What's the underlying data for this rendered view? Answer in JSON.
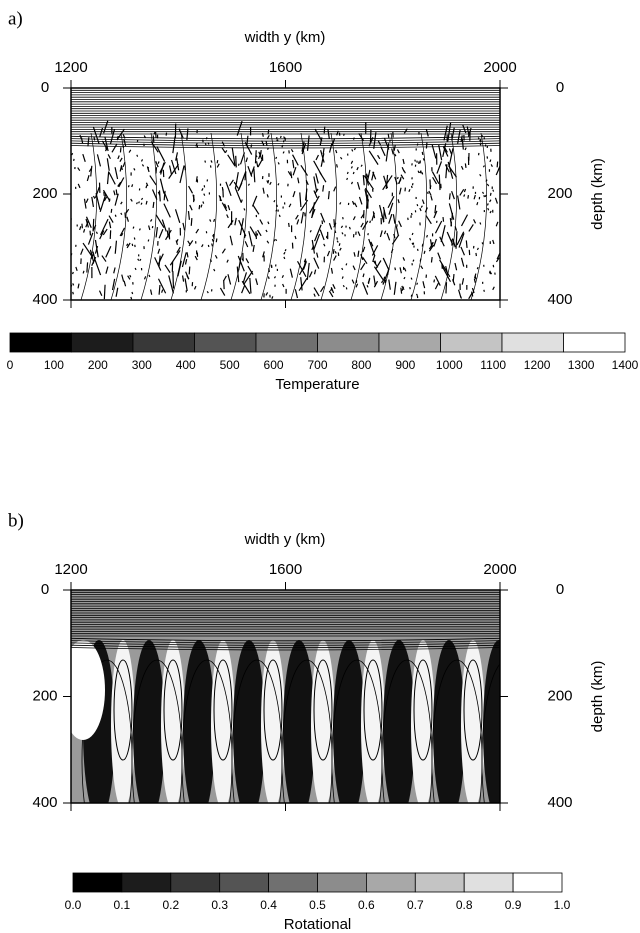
{
  "chart_data": [
    {
      "type": "contour",
      "panel_label": "a)",
      "xlabel": "width y (km)",
      "ylabel": "depth (km)",
      "xlim": [
        1200,
        2000
      ],
      "xticks": [
        1200,
        1600,
        2000
      ],
      "ylim": [
        0,
        400
      ],
      "yticks": [
        0,
        200,
        400
      ],
      "field": "vectors",
      "colorbar": {
        "label": "Temperature",
        "lim": [
          0,
          1400
        ],
        "ticks": [
          0,
          100,
          200,
          300,
          400,
          500,
          600,
          700,
          800,
          900,
          1000,
          1100,
          1200,
          1300,
          1400
        ],
        "colors": [
          "#000000",
          "#1c1c1c",
          "#383838",
          "#545454",
          "#707070",
          "#8c8c8c",
          "#a8a8a8",
          "#c4c4c4",
          "#e0e0e0",
          "#ffffff"
        ]
      }
    },
    {
      "type": "contour",
      "panel_label": "b)",
      "xlabel": "width y (km)",
      "ylabel": "depth (km)",
      "xlim": [
        1200,
        2000
      ],
      "xticks": [
        1200,
        1600,
        2000
      ],
      "ylim": [
        0,
        400
      ],
      "yticks": [
        0,
        200,
        400
      ],
      "field": "shaded",
      "colorbar": {
        "label": "Rotational",
        "lim": [
          0,
          1
        ],
        "ticks": [
          {
            "value": 0,
            "label": "0.0"
          },
          0.1,
          0.2,
          0.3,
          0.4,
          0.5,
          0.6,
          0.7,
          0.8,
          0.9,
          {
            "value": 1,
            "label": "1.0"
          }
        ],
        "colors": [
          "#000000",
          "#1c1c1c",
          "#383838",
          "#545454",
          "#707070",
          "#8c8c8c",
          "#a8a8a8",
          "#c4c4c4",
          "#e0e0e0",
          "#ffffff"
        ]
      }
    }
  ]
}
